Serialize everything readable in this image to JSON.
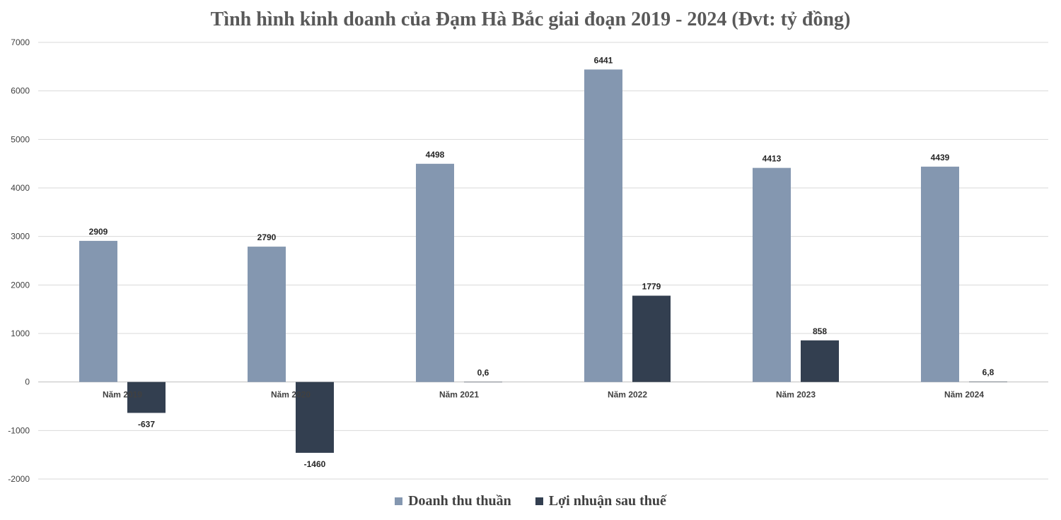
{
  "chart_data": {
    "type": "bar",
    "title": "Tình hình kinh doanh của Đạm Hà Bắc giai đoạn 2019 - 2024 (Đvt: tỷ đồng)",
    "categories": [
      "Năm 2019",
      "Năm 2020",
      "Năm 2021",
      "Năm 2022",
      "Năm 2023",
      "Năm 2024"
    ],
    "series": [
      {
        "name": "Doanh thu thuần",
        "color": "#8497b0",
        "values": [
          2909,
          2790,
          4498,
          6441,
          4413,
          4439
        ],
        "labels": [
          "2909",
          "2790",
          "4498",
          "6441",
          "4413",
          "4439"
        ]
      },
      {
        "name": "Lợi nhuận sau thuế",
        "color": "#333f50",
        "values": [
          -637,
          -1460,
          0.6,
          1779,
          858,
          6.8
        ],
        "labels": [
          "-637",
          "-1460",
          "0,6",
          "1779",
          "858",
          "6,8"
        ]
      }
    ],
    "ylim": [
      -2000,
      7000
    ],
    "yticks": [
      -2000,
      -1000,
      0,
      1000,
      2000,
      3000,
      4000,
      5000,
      6000,
      7000
    ],
    "grid": true,
    "legend_position": "bottom"
  }
}
